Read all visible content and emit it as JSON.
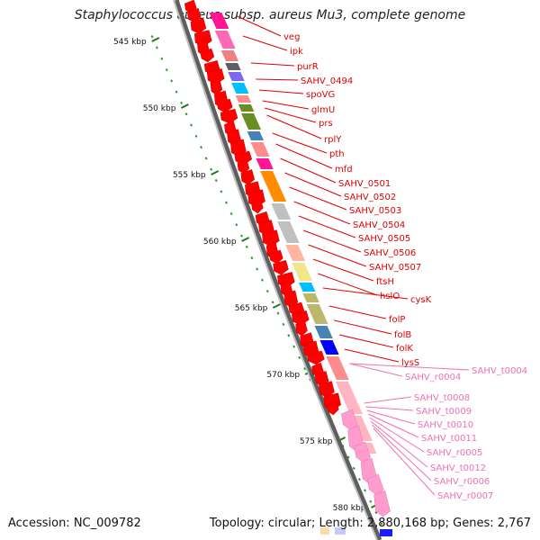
{
  "title": "Staphylococcus aureus subsp. aureus Mu3, complete genome",
  "footer": {
    "accession": "Accession: NC_009782",
    "info": "Topology: circular; Length: 2,880,168 bp; Genes: 2,767"
  },
  "colors": {
    "backbone": "#808080",
    "protein_label": "#e00000",
    "rna_label": "#f070b0",
    "dot_track": "#2a9a2a"
  },
  "ticks": [
    {
      "label": "545 kbp"
    },
    {
      "label": "550 kbp"
    },
    {
      "label": "555 kbp"
    },
    {
      "label": "560 kbp"
    },
    {
      "label": "565 kbp"
    },
    {
      "label": "570 kbp"
    },
    {
      "label": "575 kbp"
    },
    {
      "label": "580 kbp"
    }
  ],
  "gene_labels": [
    {
      "name": "veg",
      "type": "protein"
    },
    {
      "name": "ipk",
      "type": "protein"
    },
    {
      "name": "purR",
      "type": "protein"
    },
    {
      "name": "SAHV_0494",
      "type": "protein"
    },
    {
      "name": "spoVG",
      "type": "protein"
    },
    {
      "name": "glmU",
      "type": "protein"
    },
    {
      "name": "prs",
      "type": "protein"
    },
    {
      "name": "rplY",
      "type": "protein"
    },
    {
      "name": "pth",
      "type": "protein"
    },
    {
      "name": "mfd",
      "type": "protein"
    },
    {
      "name": "SAHV_0501",
      "type": "protein"
    },
    {
      "name": "SAHV_0502",
      "type": "protein"
    },
    {
      "name": "SAHV_0503",
      "type": "protein"
    },
    {
      "name": "SAHV_0504",
      "type": "protein"
    },
    {
      "name": "SAHV_0505",
      "type": "protein"
    },
    {
      "name": "SAHV_0506",
      "type": "protein"
    },
    {
      "name": "SAHV_0507",
      "type": "protein"
    },
    {
      "name": "ftsH",
      "type": "protein"
    },
    {
      "name": "hslO",
      "type": "protein"
    },
    {
      "name": "cysK",
      "type": "protein"
    },
    {
      "name": "folP",
      "type": "protein"
    },
    {
      "name": "folB",
      "type": "protein"
    },
    {
      "name": "folK",
      "type": "protein"
    },
    {
      "name": "lysS",
      "type": "protein"
    },
    {
      "name": "SAHV_r0004",
      "type": "rna"
    },
    {
      "name": "SAHV_t0004",
      "type": "rna"
    },
    {
      "name": "SAHV_t0008",
      "type": "rna"
    },
    {
      "name": "SAHV_t0009",
      "type": "rna"
    },
    {
      "name": "SAHV_t0010",
      "type": "rna"
    },
    {
      "name": "SAHV_t0011",
      "type": "rna"
    },
    {
      "name": "SAHV_r0005",
      "type": "rna"
    },
    {
      "name": "SAHV_t0012",
      "type": "rna"
    },
    {
      "name": "SAHV_r0006",
      "type": "rna"
    },
    {
      "name": "SAHV_r0007",
      "type": "rna"
    }
  ],
  "cog_blocks": [
    {
      "color": "#ff1493"
    },
    {
      "color": "#ff69b4"
    },
    {
      "color": "#f08080"
    },
    {
      "color": "#606060"
    },
    {
      "color": "#7b68ee"
    },
    {
      "color": "#00bfff"
    },
    {
      "color": "#ff8c8c"
    },
    {
      "color": "#6b8e23"
    },
    {
      "color": "#6b8e23"
    },
    {
      "color": "#4682b4"
    },
    {
      "color": "#ff8c8c"
    },
    {
      "color": "#ff1493"
    },
    {
      "color": "#ff8c00"
    },
    {
      "color": "#c0c0c0"
    },
    {
      "color": "#c0c0c0"
    },
    {
      "color": "#ffb6a0"
    },
    {
      "color": "#f0e68c"
    },
    {
      "color": "#00bfff"
    },
    {
      "color": "#bdb76b"
    },
    {
      "color": "#bdb76b"
    },
    {
      "color": "#4682b4"
    },
    {
      "color": "#0000ff"
    },
    {
      "color": "#ff8c8c"
    },
    {
      "color": "#ffb6c1"
    },
    {
      "color": "#ffb6c1"
    },
    {
      "color": "#ffb6c1"
    }
  ]
}
